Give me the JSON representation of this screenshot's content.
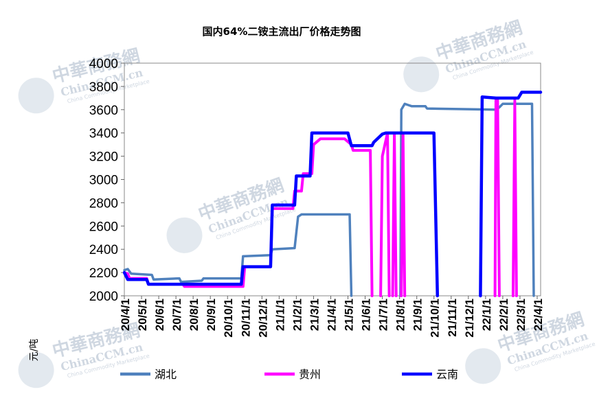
{
  "chart_data": {
    "type": "line",
    "title": "国内64%二铵主流出厂价格走势图",
    "ylabel": "元/吨",
    "xlabel": "",
    "ylim": [
      2000,
      4000
    ],
    "yticks": [
      2000,
      2200,
      2400,
      2600,
      2800,
      3000,
      3200,
      3400,
      3600,
      3800,
      4000
    ],
    "xlim": [
      0,
      24.2
    ],
    "categories": [
      "20/4/1",
      "20/5/1",
      "20/6/1",
      "20/7/1",
      "20/8/1",
      "20/9/1",
      "20/10/1",
      "20/11/1",
      "20/12/1",
      "21/1/1",
      "21/2/1",
      "21/3/1",
      "21/4/1",
      "21/5/1",
      "21/6/1",
      "21/7/1",
      "21/8/1",
      "21/9/1",
      "21/10/1",
      "21/11/1",
      "21/12/1",
      "22/1/1",
      "22/2/1",
      "22/3/1",
      "22/4/1"
    ],
    "legend_position": "bottom",
    "grid": false,
    "watermark": {
      "brand": "中華商務網",
      "site": "ChinaCCM.cn",
      "tagline": "China Commodity Marketplace"
    },
    "series": [
      {
        "name": "湖北",
        "color": "#4f81bd",
        "points": [
          [
            0,
            2220
          ],
          [
            0.2,
            2230
          ],
          [
            0.4,
            2190
          ],
          [
            1.6,
            2180
          ],
          [
            1.7,
            2140
          ],
          [
            3.2,
            2150
          ],
          [
            3.3,
            2120
          ],
          [
            4.5,
            2130
          ],
          [
            4.6,
            2150
          ],
          [
            6.8,
            2150
          ],
          [
            6.9,
            2340
          ],
          [
            8.5,
            2350
          ],
          [
            8.6,
            2400
          ],
          [
            9.9,
            2410
          ],
          [
            10.1,
            2680
          ],
          [
            10.3,
            2700
          ],
          [
            13.1,
            2700
          ],
          [
            13.2,
            2000
          ],
          [
            null,
            null
          ],
          [
            16.05,
            2000
          ],
          [
            16.1,
            3600
          ],
          [
            16.3,
            3650
          ],
          [
            16.5,
            3640
          ],
          [
            16.7,
            3630
          ],
          [
            17.5,
            3630
          ],
          [
            17.6,
            3610
          ],
          [
            21.6,
            3600
          ],
          [
            21.8,
            3620
          ],
          [
            22.0,
            3650
          ],
          [
            23.7,
            3650
          ],
          [
            23.8,
            2000
          ]
        ]
      },
      {
        "name": "贵州",
        "color": "#ff00ff",
        "points": [
          [
            0,
            2200
          ],
          [
            0.2,
            2190
          ],
          [
            0.3,
            2150
          ],
          [
            1.3,
            2150
          ],
          [
            1.4,
            2100
          ],
          [
            3.4,
            2100
          ],
          [
            3.5,
            2080
          ],
          [
            6.9,
            2080
          ],
          [
            7.0,
            2250
          ],
          [
            8.5,
            2250
          ],
          [
            8.6,
            2750
          ],
          [
            9.8,
            2750
          ],
          [
            9.9,
            2900
          ],
          [
            10.3,
            2900
          ],
          [
            10.4,
            3050
          ],
          [
            10.9,
            3050
          ],
          [
            11.0,
            3300
          ],
          [
            11.4,
            3350
          ],
          [
            12.8,
            3350
          ],
          [
            13.2,
            3300
          ],
          [
            13.3,
            3250
          ],
          [
            14.3,
            3250
          ],
          [
            14.4,
            2000
          ],
          [
            null,
            null
          ],
          [
            14.9,
            2000
          ],
          [
            15.0,
            3200
          ],
          [
            15.3,
            3400
          ],
          [
            15.4,
            2000
          ],
          [
            null,
            null
          ],
          [
            15.6,
            2000
          ],
          [
            15.7,
            3400
          ],
          [
            15.8,
            2000
          ],
          [
            null,
            null
          ],
          [
            16.1,
            2000
          ],
          [
            16.2,
            3400
          ],
          [
            16.3,
            2000
          ],
          [
            null,
            null
          ],
          [
            21.55,
            2000
          ],
          [
            21.6,
            3680
          ],
          [
            21.7,
            3680
          ],
          [
            21.8,
            2000
          ],
          [
            null,
            null
          ],
          [
            22.6,
            2000
          ],
          [
            22.7,
            3680
          ],
          [
            22.8,
            2000
          ]
        ]
      },
      {
        "name": "云南",
        "color": "#0000ff",
        "points": [
          [
            0,
            2200
          ],
          [
            0.2,
            2140
          ],
          [
            1.3,
            2140
          ],
          [
            1.4,
            2100
          ],
          [
            6.8,
            2100
          ],
          [
            6.9,
            2250
          ],
          [
            8.5,
            2250
          ],
          [
            8.6,
            2780
          ],
          [
            9.9,
            2780
          ],
          [
            10.0,
            3030
          ],
          [
            10.8,
            3030
          ],
          [
            10.9,
            3400
          ],
          [
            13.0,
            3400
          ],
          [
            13.2,
            3290
          ],
          [
            14.4,
            3290
          ],
          [
            14.5,
            3320
          ],
          [
            15.0,
            3390
          ],
          [
            15.2,
            3400
          ],
          [
            18.0,
            3400
          ],
          [
            18.2,
            2000
          ],
          [
            null,
            null
          ],
          [
            20.7,
            2000
          ],
          [
            20.8,
            3710
          ],
          [
            21.6,
            3700
          ],
          [
            22.9,
            3700
          ],
          [
            23.1,
            3750
          ],
          [
            24.2,
            3750
          ]
        ]
      }
    ]
  }
}
